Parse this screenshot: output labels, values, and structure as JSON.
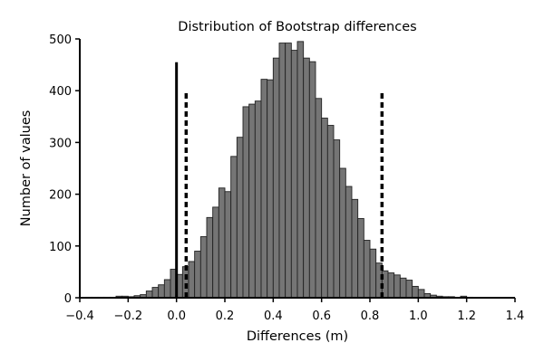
{
  "chart_data": {
    "type": "bar",
    "title": "Distribution of Bootstrap differences",
    "xlabel": "Differences (m)",
    "ylabel": "Number of values",
    "xlim": [
      -0.4,
      1.4
    ],
    "ylim": [
      0,
      500
    ],
    "grid": false,
    "legend": "none",
    "bin_width": 0.025,
    "bin_starts": [
      -0.375,
      -0.35,
      -0.325,
      -0.3,
      -0.275,
      -0.25,
      -0.225,
      -0.2,
      -0.175,
      -0.15,
      -0.125,
      -0.1,
      -0.075,
      -0.05,
      -0.025,
      0.0,
      0.025,
      0.05,
      0.075,
      0.1,
      0.125,
      0.15,
      0.175,
      0.2,
      0.225,
      0.25,
      0.275,
      0.3,
      0.325,
      0.35,
      0.375,
      0.4,
      0.425,
      0.45,
      0.475,
      0.5,
      0.525,
      0.55,
      0.575,
      0.6,
      0.625,
      0.65,
      0.675,
      0.7,
      0.725,
      0.75,
      0.775,
      0.8,
      0.825,
      0.85,
      0.875,
      0.9,
      0.925,
      0.95,
      0.975,
      1.0,
      1.025,
      1.05,
      1.075,
      1.1,
      1.125,
      1.15,
      1.175,
      1.2
    ],
    "counts": [
      1,
      1,
      1,
      1,
      1,
      3,
      3,
      2,
      4,
      6,
      13,
      20,
      25,
      35,
      55,
      45,
      60,
      70,
      90,
      118,
      155,
      175,
      212,
      205,
      273,
      310,
      369,
      374,
      380,
      422,
      421,
      463,
      492,
      492,
      478,
      495,
      463,
      456,
      385,
      347,
      333,
      305,
      250,
      215,
      190,
      153,
      111,
      94,
      67,
      52,
      48,
      44,
      38,
      34,
      22,
      16,
      8,
      5,
      3,
      2,
      2,
      1,
      3,
      1
    ],
    "bar_color": "#757575",
    "edge_color": "#222222",
    "reference_lines": [
      {
        "x": 0.0,
        "style": "solid",
        "y_top": 455
      },
      {
        "x": 0.04,
        "style": "dashed",
        "y_top": 395
      },
      {
        "x": 0.85,
        "style": "dashed",
        "y_top": 395
      }
    ],
    "x_ticks": [
      -0.4,
      -0.2,
      0.0,
      0.2,
      0.4,
      0.6,
      0.8,
      1.0,
      1.2,
      1.4
    ],
    "x_tick_labels": [
      "−0.4",
      "−0.2",
      "0.0",
      "0.2",
      "0.4",
      "0.6",
      "0.8",
      "1.0",
      "1.2",
      "1.4"
    ],
    "y_ticks": [
      0,
      100,
      200,
      300,
      400,
      500
    ],
    "y_tick_labels": [
      "0",
      "100",
      "200",
      "300",
      "400",
      "500"
    ]
  }
}
